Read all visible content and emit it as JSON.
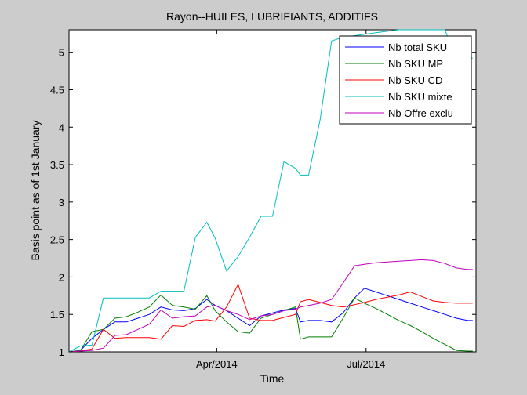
{
  "chart_data": {
    "type": "line",
    "title": "Rayon--HUILES, LUBRIFIANTS, ADDITIFS",
    "xlabel": "Time",
    "ylabel": "Basis point as of 1st January",
    "x": [
      "2014-01-01",
      "2014-01-08",
      "2014-01-15",
      "2014-01-22",
      "2014-01-29",
      "2014-02-05",
      "2014-02-12",
      "2014-02-19",
      "2014-02-26",
      "2014-03-05",
      "2014-03-12",
      "2014-03-19",
      "2014-03-26",
      "2014-03-31",
      "2014-04-07",
      "2014-04-14",
      "2014-04-21",
      "2014-04-28",
      "2014-05-05",
      "2014-05-12",
      "2014-05-19",
      "2014-05-22",
      "2014-05-27",
      "2014-06-03",
      "2014-06-10",
      "2014-06-17",
      "2014-06-24",
      "2014-06-30",
      "2014-07-07",
      "2014-07-14",
      "2014-07-21",
      "2014-07-28",
      "2014-08-04",
      "2014-08-11",
      "2014-08-18",
      "2014-08-25",
      "2014-09-01",
      "2014-09-04"
    ],
    "xlim": [
      "2014-01-01",
      "2014-09-06"
    ],
    "ylim": [
      1,
      5.3
    ],
    "x_ticks": [
      {
        "date": "2014-04-01",
        "label": "Apr/2014"
      },
      {
        "date": "2014-07-01",
        "label": "Jul/2014"
      }
    ],
    "y_ticks": [
      {
        "value": 1,
        "label": "1"
      },
      {
        "value": 1.5,
        "label": "1.5"
      },
      {
        "value": 2,
        "label": "2"
      },
      {
        "value": 2.5,
        "label": "2.5"
      },
      {
        "value": 3,
        "label": "3"
      },
      {
        "value": 3.5,
        "label": "3.5"
      },
      {
        "value": 4,
        "label": "4"
      },
      {
        "value": 4.5,
        "label": "4.5"
      },
      {
        "value": 5,
        "label": "5"
      }
    ],
    "grid": false,
    "legend_position": "top-right",
    "series": [
      {
        "name": "Nb total SKU",
        "color": "#0000ff",
        "values": [
          1,
          1.02,
          1.18,
          1.3,
          1.4,
          1.4,
          1.45,
          1.5,
          1.6,
          1.56,
          1.55,
          1.58,
          1.7,
          1.62,
          1.55,
          1.45,
          1.35,
          1.48,
          1.52,
          1.56,
          1.58,
          1.4,
          1.42,
          1.42,
          1.4,
          1.52,
          1.72,
          1.85,
          1.8,
          1.75,
          1.7,
          1.65,
          1.6,
          1.55,
          1.5,
          1.45,
          1.42,
          1.42
        ]
      },
      {
        "name": "Nb SKU MP",
        "color": "#007f00",
        "values": [
          1,
          1.02,
          1.27,
          1.3,
          1.45,
          1.47,
          1.53,
          1.6,
          1.76,
          1.62,
          1.6,
          1.57,
          1.75,
          1.55,
          1.4,
          1.27,
          1.25,
          1.45,
          1.5,
          1.55,
          1.6,
          1.17,
          1.2,
          1.2,
          1.2,
          1.45,
          1.72,
          1.65,
          1.58,
          1.5,
          1.42,
          1.35,
          1.27,
          1.18,
          1.1,
          1.02,
          1.01,
          1.01
        ]
      },
      {
        "name": "Nb SKU CD",
        "color": "#ff0000",
        "values": [
          1,
          1.01,
          1.04,
          1.3,
          1.18,
          1.19,
          1.19,
          1.19,
          1.17,
          1.35,
          1.34,
          1.42,
          1.43,
          1.41,
          1.6,
          1.9,
          1.45,
          1.42,
          1.42,
          1.46,
          1.5,
          1.67,
          1.7,
          1.66,
          1.62,
          1.6,
          1.63,
          1.66,
          1.7,
          1.73,
          1.76,
          1.8,
          1.74,
          1.68,
          1.66,
          1.65,
          1.65,
          1.65
        ]
      },
      {
        "name": "Nb SKU mixte",
        "color": "#00bfbf",
        "values": [
          1,
          1.08,
          1.09,
          1.72,
          1.72,
          1.72,
          1.72,
          1.72,
          1.81,
          1.81,
          1.81,
          2.53,
          2.73,
          2.52,
          2.08,
          2.27,
          2.53,
          2.81,
          2.81,
          3.54,
          3.45,
          3.36,
          3.36,
          4.1,
          5.15,
          5.2,
          5.22,
          5.24,
          5.26,
          5.28,
          5.3,
          5.3,
          5.3,
          5.3,
          5.3,
          4.92,
          4.92,
          4.92
        ]
      },
      {
        "name": "Nb Offre exclu",
        "color": "#bf00bf",
        "values": [
          1,
          1.01,
          1.02,
          1.05,
          1.22,
          1.23,
          1.3,
          1.37,
          1.56,
          1.45,
          1.47,
          1.48,
          1.6,
          1.62,
          1.55,
          1.5,
          1.43,
          1.48,
          1.5,
          1.55,
          1.57,
          1.6,
          1.62,
          1.65,
          1.7,
          1.92,
          2.15,
          2.17,
          2.19,
          2.2,
          2.21,
          2.22,
          2.23,
          2.22,
          2.18,
          2.12,
          2.1,
          2.1
        ]
      }
    ]
  }
}
